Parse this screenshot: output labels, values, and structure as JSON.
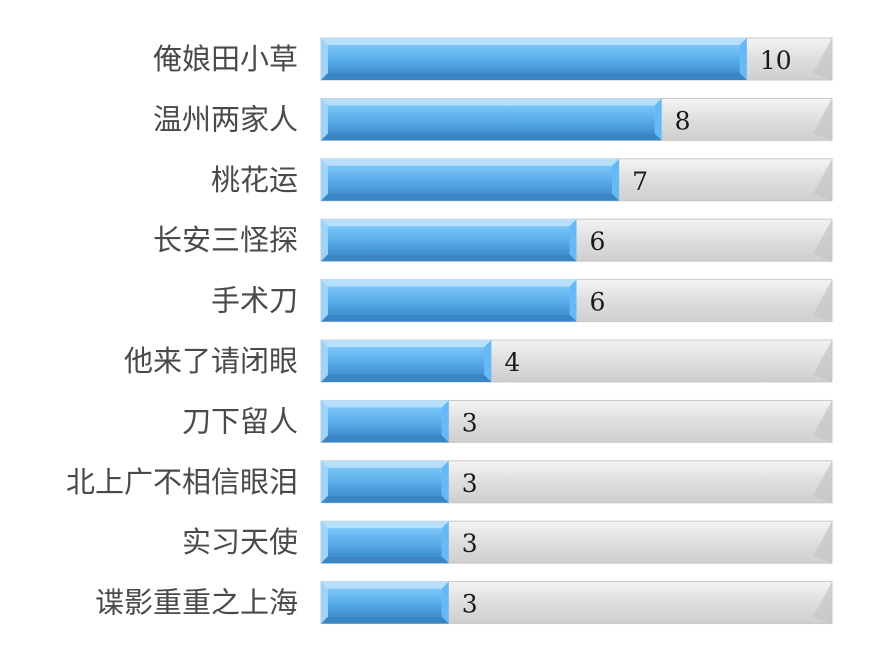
{
  "chart_data": {
    "type": "bar",
    "orientation": "horizontal",
    "categories": [
      "俺娘田小草",
      "温州两家人",
      "桃花运",
      "长安三怪探",
      "手术刀",
      "他来了请闭眼",
      "刀下留人",
      "北上广不相信眼泪",
      "实习天使",
      "谍影重重之上海"
    ],
    "values": [
      10,
      8,
      7,
      6,
      6,
      4,
      3,
      3,
      3,
      3
    ],
    "xlim": [
      0,
      12
    ],
    "grid": false,
    "legend": "none",
    "data_labels": true
  },
  "colors": {
    "bar_fill": "#4a9ad8",
    "bar_highlight": "#66b9f5",
    "bar_edge": "#9fd4fa",
    "track_fill": "#d9d9d9",
    "track_edge": "#ededed",
    "category_text": "#4a4a4a",
    "value_text": "#1a1a1a"
  }
}
